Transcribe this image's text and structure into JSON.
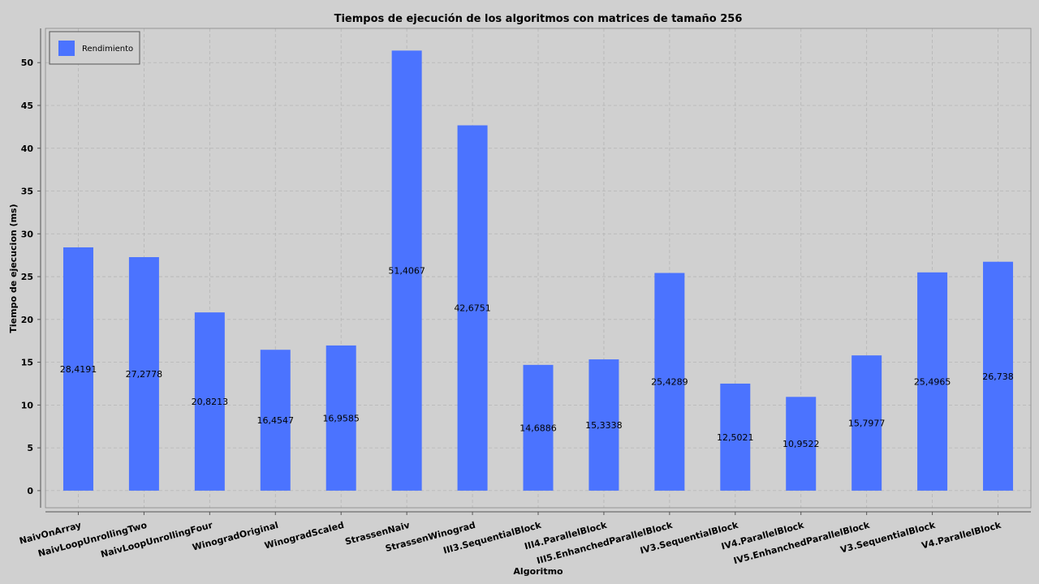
{
  "chart_data": {
    "type": "bar",
    "title": "Tiempos de ejecución de los algoritmos con matrices de tamaño 256",
    "xlabel": "Algoritmo",
    "ylabel": "Tiempo de ejecucion (ms)",
    "ylim": [
      -2,
      54
    ],
    "yticks": [
      0,
      5,
      10,
      15,
      20,
      25,
      30,
      35,
      40,
      45,
      50
    ],
    "grid": true,
    "legend_position": "top-left",
    "categories": [
      "NaivOnArray",
      "NaivLoopUnrollingTwo",
      "NaivLoopUnrollingFour",
      "WinogradOriginal",
      "WinogradScaled",
      "StrassenNaiv",
      "StrassenWinograd",
      "III3.SequentialBlock",
      "III4.ParallelBlock",
      "III5.EnhanchedParallelBlock",
      "IV3.SequentialBlock",
      "IV4.ParallelBlock",
      "IV5.EnhanchedParallelBlock",
      "V3.SequentialBlock",
      "V4.ParallelBlock"
    ],
    "series": [
      {
        "name": "Rendimiento",
        "color": "#4b73ff",
        "values": [
          28.4191,
          27.2778,
          20.8213,
          16.4547,
          16.9585,
          51.4067,
          42.6751,
          14.6886,
          15.3338,
          25.4289,
          12.5021,
          10.9522,
          15.7977,
          25.4965,
          26.738
        ],
        "labels": [
          "28,4191",
          "27,2778",
          "20,8213",
          "16,4547",
          "16,9585",
          "51,4067",
          "42,6751",
          "14,6886",
          "15,3338",
          "25,4289",
          "12,5021",
          "10,9522",
          "15,7977",
          "25,4965",
          "26,738"
        ]
      }
    ],
    "background_color": "#d0d0d0",
    "grid_color": "#b5b5b5"
  }
}
